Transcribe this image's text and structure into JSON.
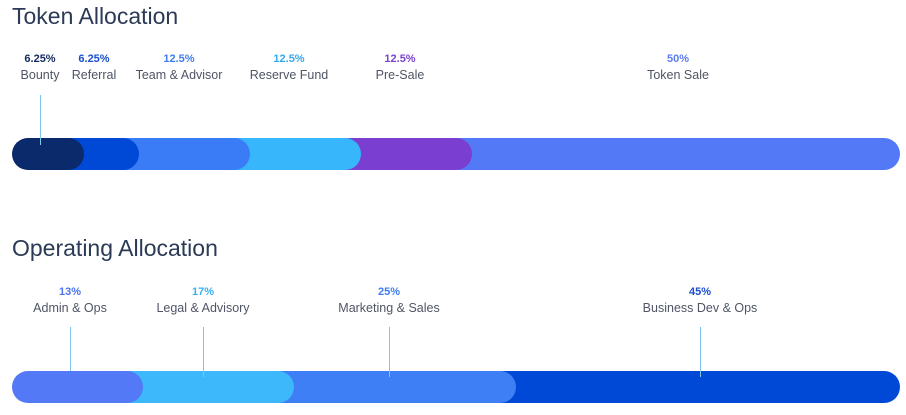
{
  "chart_data": [
    {
      "type": "bar",
      "title": "Token Allocation",
      "categories": [
        "Bounty",
        "Referral",
        "Team & Advisor",
        "Reserve Fund",
        "Pre-Sale",
        "Token Sale"
      ],
      "values": [
        6.25,
        6.25,
        12.5,
        12.5,
        12.5,
        50
      ],
      "value_labels": [
        "6.25%",
        "6.25%",
        "12.5%",
        "12.5%",
        "12.5%",
        "50%"
      ],
      "colors": [
        "#0a2a6b",
        "#0049d6",
        "#3a7cf5",
        "#38b6fb",
        "#7a3fd0",
        "#5479f7"
      ],
      "label_colors": [
        "#132a5e",
        "#1a4fcf",
        "#3f7cf0",
        "#34a9ee",
        "#7a44cc",
        "#5a7df3"
      ],
      "leader": [
        true,
        false,
        false,
        false,
        false,
        false
      ]
    },
    {
      "type": "bar",
      "title": "Operating Allocation",
      "categories": [
        "Admin & Ops",
        "Legal & Advisory",
        "Marketing & Sales",
        "Business Dev & Ops"
      ],
      "values": [
        13,
        17,
        25,
        45
      ],
      "value_labels": [
        "13%",
        "17%",
        "25%",
        "45%"
      ],
      "colors": [
        "#5479f7",
        "#3cb8fb",
        "#3f7ff5",
        "#0049d6"
      ],
      "label_colors": [
        "#4d73ee",
        "#37b0f2",
        "#3f7cf0",
        "#1a4fcf"
      ],
      "leader": [
        true,
        true,
        true,
        true
      ]
    }
  ]
}
